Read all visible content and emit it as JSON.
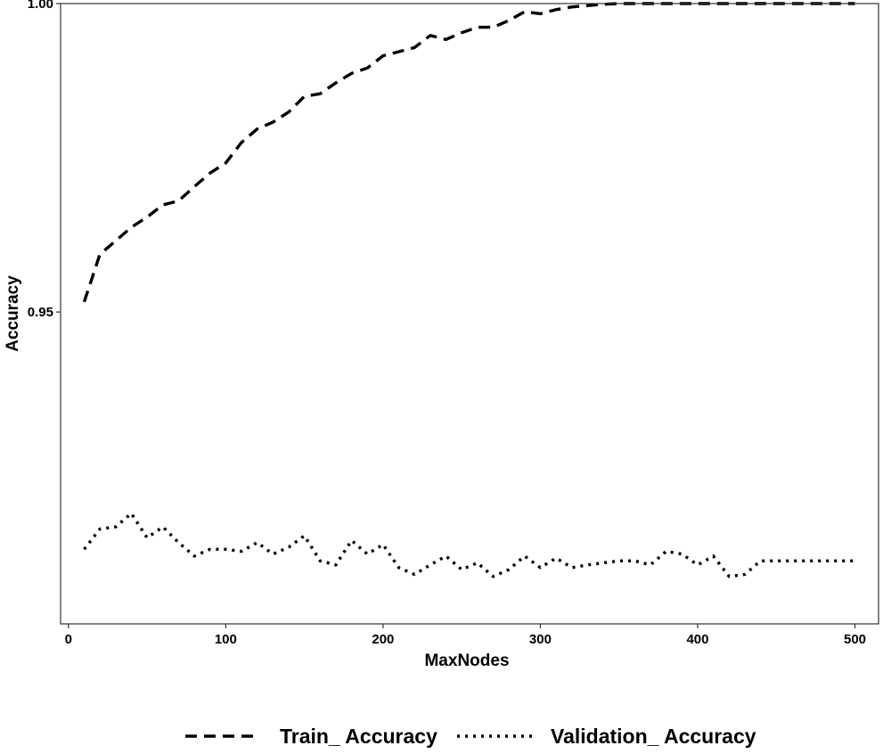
{
  "chart_data": {
    "type": "line",
    "title": "",
    "xlabel": "MaxNodes",
    "ylabel": "Accuracy",
    "xlim": [
      -5,
      515
    ],
    "ylim": [
      0.904,
      0.9955
    ],
    "x_ticks": [
      {
        "value": 0,
        "label": "0"
      },
      {
        "value": 100,
        "label": "100"
      },
      {
        "value": 200,
        "label": "200"
      },
      {
        "value": 300,
        "label": "300"
      },
      {
        "value": 400,
        "label": "400"
      },
      {
        "value": 500,
        "label": "500"
      }
    ],
    "y_ticks": [
      {
        "value": 0.95,
        "label": "0.95"
      },
      {
        "value": 0.9955,
        "label": "1.00"
      }
    ],
    "grid": false,
    "legend_position": "bottom",
    "series": [
      {
        "name": "Train_ Accuracy",
        "style": "dashed",
        "color": "#000000",
        "x": [
          10,
          20,
          30,
          40,
          50,
          60,
          70,
          80,
          90,
          100,
          110,
          120,
          130,
          140,
          150,
          160,
          170,
          180,
          190,
          200,
          210,
          220,
          230,
          240,
          250,
          260,
          270,
          280,
          290,
          300,
          310,
          320,
          330,
          340,
          350,
          360,
          370,
          380,
          390,
          400,
          410,
          420,
          430,
          440,
          450,
          460,
          470,
          480,
          490,
          500
        ],
        "y": [
          0.9515,
          0.9585,
          0.9605,
          0.9625,
          0.964,
          0.9658,
          0.9664,
          0.9685,
          0.9705,
          0.972,
          0.975,
          0.977,
          0.978,
          0.9795,
          0.9818,
          0.9822,
          0.9838,
          0.9852,
          0.986,
          0.9878,
          0.9884,
          0.989,
          0.9908,
          0.9902,
          0.9912,
          0.992,
          0.992,
          0.993,
          0.9943,
          0.994,
          0.9946,
          0.995,
          0.9952,
          0.9954,
          0.9955,
          0.9955,
          0.9955,
          0.9955,
          0.9955,
          0.9955,
          0.9955,
          0.9955,
          0.9955,
          0.9955,
          0.9955,
          0.9955,
          0.9955,
          0.9955,
          0.9955,
          0.9955
        ]
      },
      {
        "name": "Validation_ Accuracy",
        "style": "dotted",
        "color": "#000000",
        "x": [
          10,
          20,
          30,
          40,
          50,
          60,
          70,
          80,
          90,
          100,
          110,
          120,
          130,
          140,
          150,
          160,
          170,
          180,
          190,
          200,
          210,
          220,
          230,
          240,
          250,
          260,
          270,
          280,
          290,
          300,
          310,
          320,
          330,
          340,
          350,
          360,
          370,
          380,
          390,
          400,
          410,
          420,
          430,
          440,
          450,
          460,
          470,
          480,
          490,
          500
        ],
        "y": [
          0.915,
          0.918,
          0.9183,
          0.9203,
          0.9167,
          0.9183,
          0.916,
          0.914,
          0.915,
          0.915,
          0.9147,
          0.916,
          0.9143,
          0.9153,
          0.917,
          0.9133,
          0.9127,
          0.9163,
          0.9143,
          0.9157,
          0.9123,
          0.9113,
          0.9127,
          0.914,
          0.912,
          0.913,
          0.911,
          0.912,
          0.914,
          0.9123,
          0.9137,
          0.9123,
          0.9127,
          0.913,
          0.9133,
          0.9133,
          0.9127,
          0.9147,
          0.9143,
          0.9127,
          0.914,
          0.911,
          0.9113,
          0.9133,
          0.9133,
          0.9133,
          0.9133,
          0.9133,
          0.9133,
          0.9133
        ]
      }
    ]
  }
}
